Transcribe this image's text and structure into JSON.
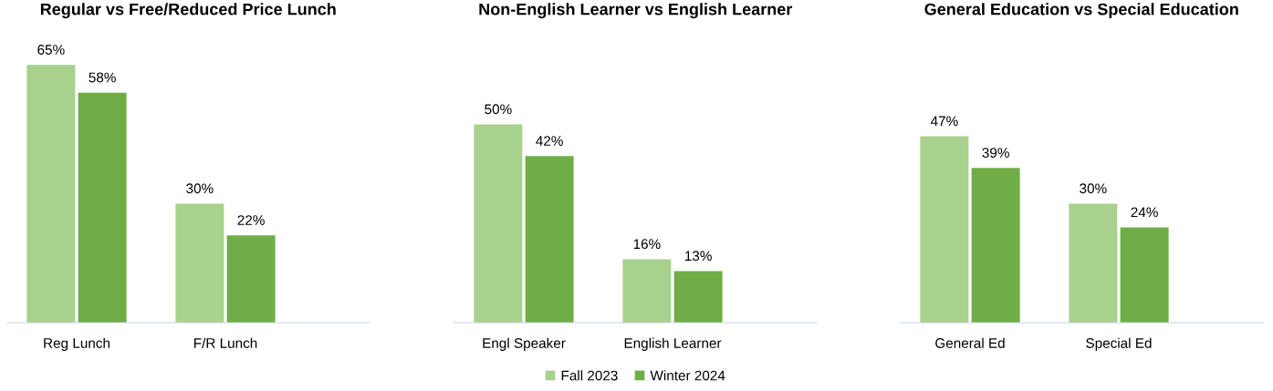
{
  "chart_data": [
    {
      "type": "bar",
      "title": "Regular vs Free/Reduced Price Lunch",
      "categories": [
        "Reg Lunch",
        "F/R Lunch"
      ],
      "series": [
        {
          "color": "#a9d18e",
          "values": [
            65,
            30
          ],
          "value_labels": [
            "65%",
            "30%"
          ]
        },
        {
          "color": "#70ad47",
          "values": [
            58,
            22
          ],
          "value_labels": [
            "58%",
            "22%"
          ]
        }
      ]
    },
    {
      "type": "bar",
      "title": "Non-English Learner vs English Learner",
      "categories": [
        "Engl Speaker",
        "English Learner"
      ],
      "legend": "bottom",
      "series": [
        {
          "name": "Fall 2023",
          "color": "#a9d18e",
          "values": [
            50,
            16
          ],
          "value_labels": [
            "50%",
            "16%"
          ]
        },
        {
          "name": "Winter 2024",
          "color": "#70ad47",
          "values": [
            42,
            13
          ],
          "value_labels": [
            "42%",
            "13%"
          ]
        }
      ]
    },
    {
      "type": "bar",
      "title": "General Education vs Special Education",
      "categories": [
        "General Ed",
        "Special Ed"
      ],
      "series": [
        {
          "color": "#a9d18e",
          "values": [
            47,
            30
          ],
          "value_labels": [
            "47%",
            "30%"
          ]
        },
        {
          "color": "#70ad47",
          "values": [
            39,
            24
          ],
          "value_labels": [
            "39%",
            "24%"
          ]
        }
      ]
    }
  ]
}
